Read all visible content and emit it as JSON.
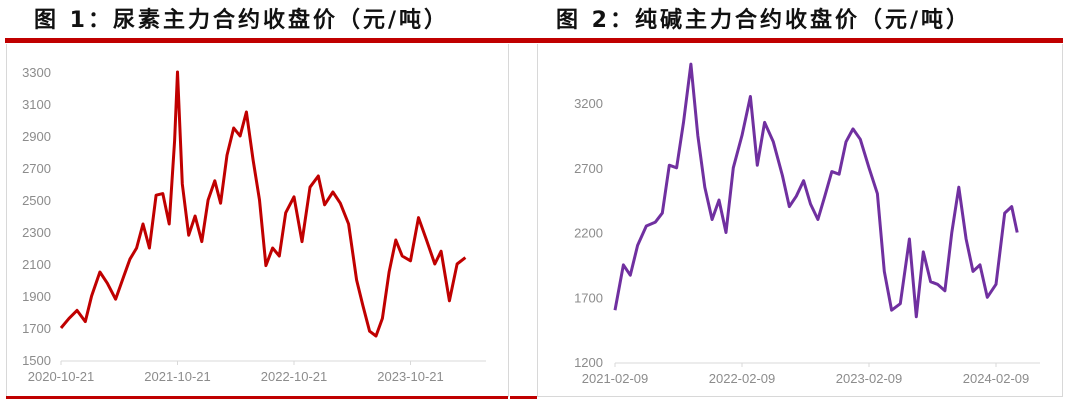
{
  "figures": [
    {
      "title": "图 1：尿素主力合约收盘价（元/吨）",
      "line_color": "#c00000"
    },
    {
      "title": "图 2：纯碱主力合约收盘价（元/吨）",
      "line_color": "#7030a0"
    }
  ],
  "accent_color": "#c00000",
  "chart_data": [
    {
      "type": "line",
      "title": "图 1：尿素主力合约收盘价（元/吨）",
      "xlabel": "",
      "ylabel": "元/吨",
      "ylim": [
        1500,
        3300
      ],
      "yticks": [
        1500,
        1700,
        1900,
        2100,
        2300,
        2500,
        2700,
        2900,
        3100,
        3300
      ],
      "xticks": [
        "2020-10-21",
        "2021-10-21",
        "2022-10-21",
        "2023-10-21"
      ],
      "grid": false,
      "legend": null,
      "series": [
        {
          "name": "尿素主力合约收盘价",
          "color": "#c00000",
          "x": [
            "2020-10-21",
            "2020-11-15",
            "2020-12-10",
            "2021-01-05",
            "2021-01-25",
            "2021-02-20",
            "2021-03-15",
            "2021-04-10",
            "2021-05-05",
            "2021-05-25",
            "2021-06-15",
            "2021-07-05",
            "2021-07-25",
            "2021-08-15",
            "2021-09-05",
            "2021-09-25",
            "2021-10-12",
            "2021-10-21",
            "2021-11-05",
            "2021-11-25",
            "2021-12-15",
            "2022-01-05",
            "2022-01-25",
            "2022-02-15",
            "2022-03-05",
            "2022-03-25",
            "2022-04-15",
            "2022-05-05",
            "2022-05-25",
            "2022-06-15",
            "2022-07-05",
            "2022-07-25",
            "2022-08-15",
            "2022-09-05",
            "2022-09-25",
            "2022-10-21",
            "2022-11-15",
            "2022-12-10",
            "2023-01-05",
            "2023-01-25",
            "2023-02-20",
            "2023-03-15",
            "2023-04-10",
            "2023-05-05",
            "2023-05-25",
            "2023-06-15",
            "2023-07-05",
            "2023-07-25",
            "2023-08-15",
            "2023-09-05",
            "2023-09-25",
            "2023-10-21",
            "2023-11-15",
            "2023-12-10",
            "2024-01-05",
            "2024-01-25",
            "2024-02-20",
            "2024-03-15",
            "2024-04-10"
          ],
          "values": [
            1700,
            1760,
            1810,
            1740,
            1900,
            2050,
            1980,
            1880,
            2020,
            2130,
            2200,
            2350,
            2200,
            2530,
            2540,
            2350,
            2870,
            3300,
            2600,
            2280,
            2400,
            2240,
            2500,
            2620,
            2480,
            2780,
            2950,
            2900,
            3050,
            2750,
            2500,
            2090,
            2200,
            2150,
            2420,
            2520,
            2240,
            2580,
            2650,
            2470,
            2550,
            2480,
            2350,
            2000,
            1840,
            1680,
            1650,
            1760,
            2050,
            2250,
            2150,
            2120,
            2390,
            2250,
            2100,
            2180,
            1870,
            2100,
            2140
          ]
        }
      ]
    },
    {
      "type": "line",
      "title": "图 2：纯碱主力合约收盘价（元/吨）",
      "xlabel": "",
      "ylabel": "元/吨",
      "ylim": [
        1200,
        3500
      ],
      "yticks": [
        1200,
        1700,
        2200,
        2700,
        3200
      ],
      "xticks": [
        "2021-02-09",
        "2022-02-09",
        "2023-02-09",
        "2024-02-09"
      ],
      "grid": false,
      "legend": null,
      "series": [
        {
          "name": "纯碱主力合约收盘价",
          "color": "#7030a0",
          "x": [
            "2021-02-09",
            "2021-03-05",
            "2021-03-25",
            "2021-04-15",
            "2021-05-10",
            "2021-06-05",
            "2021-06-25",
            "2021-07-15",
            "2021-08-05",
            "2021-08-25",
            "2021-09-15",
            "2021-10-05",
            "2021-10-25",
            "2021-11-15",
            "2021-12-05",
            "2021-12-25",
            "2022-01-15",
            "2022-02-09",
            "2022-03-05",
            "2022-03-25",
            "2022-04-15",
            "2022-05-10",
            "2022-06-05",
            "2022-06-25",
            "2022-07-15",
            "2022-08-05",
            "2022-08-25",
            "2022-09-15",
            "2022-10-05",
            "2022-10-25",
            "2022-11-15",
            "2022-12-05",
            "2022-12-25",
            "2023-01-15",
            "2023-02-09",
            "2023-03-05",
            "2023-03-25",
            "2023-04-15",
            "2023-05-10",
            "2023-06-05",
            "2023-06-25",
            "2023-07-15",
            "2023-08-05",
            "2023-08-25",
            "2023-09-15",
            "2023-10-05",
            "2023-10-25",
            "2023-11-15",
            "2023-12-05",
            "2023-12-25",
            "2024-01-15",
            "2024-02-09",
            "2024-03-05",
            "2024-03-25",
            "2024-04-10"
          ],
          "values": [
            1600,
            1950,
            1870,
            2100,
            2250,
            2280,
            2350,
            2720,
            2700,
            3050,
            3500,
            2950,
            2550,
            2300,
            2450,
            2200,
            2700,
            2950,
            3250,
            2720,
            3050,
            2900,
            2640,
            2400,
            2480,
            2600,
            2420,
            2300,
            2480,
            2670,
            2650,
            2900,
            3000,
            2920,
            2700,
            2500,
            1900,
            1600,
            1650,
            2150,
            1550,
            2050,
            1820,
            1800,
            1750,
            2200,
            2550,
            2150,
            1900,
            1950,
            1700,
            1800,
            2350,
            2400,
            2200
          ]
        }
      ]
    }
  ]
}
